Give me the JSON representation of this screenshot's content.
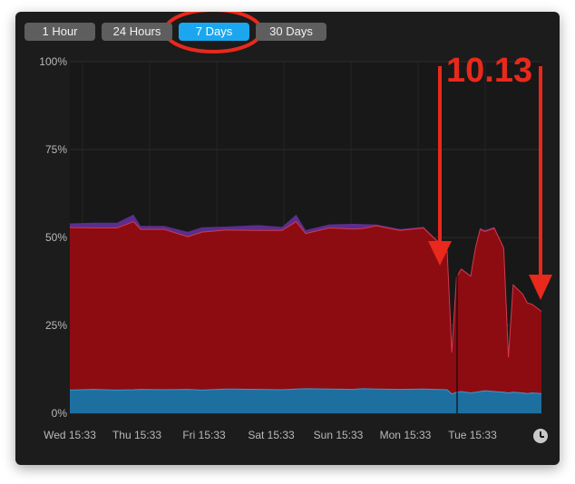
{
  "window": {
    "background": "#1c1c1c"
  },
  "tabs": [
    {
      "label": "1 Hour",
      "active": false
    },
    {
      "label": "24 Hours",
      "active": false
    },
    {
      "label": "7 Days",
      "active": true
    },
    {
      "label": "30 Days",
      "active": false
    }
  ],
  "annotation": {
    "text": "10.13",
    "color": "#e8291c"
  },
  "icons": {
    "clock": "clock-icon"
  },
  "chart_data": {
    "type": "area",
    "title": "",
    "xlabel": "",
    "ylabel": "",
    "ylim": [
      0,
      100
    ],
    "yticks": [
      "100%",
      "75%",
      "50%",
      "25%",
      "0%"
    ],
    "xticks": [
      "Wed 15:33",
      "Thu 15:33",
      "Fri 15:33",
      "Sat 15:33",
      "Sun 15:33",
      "Mon 15:33",
      "Tue 15:33"
    ],
    "grid": true,
    "stacked": true,
    "colors": {
      "blue": "#1d6fa0",
      "red": "#8c0c12",
      "purple": "#5b2e8c",
      "redLine": "#d23a4a",
      "blueLine": "#3f97c9"
    },
    "x": [
      0,
      0.05,
      0.1,
      0.135,
      0.15,
      0.2,
      0.25,
      0.28,
      0.33,
      0.4,
      0.45,
      0.48,
      0.5,
      0.55,
      0.6,
      0.62,
      0.65,
      0.7,
      0.75,
      0.8,
      0.81,
      0.82,
      0.83,
      0.85,
      0.86,
      0.87,
      0.88,
      0.9,
      0.92,
      0.93,
      0.94,
      0.96,
      0.97,
      0.98,
      1.0
    ],
    "series": [
      {
        "values": [
          6.6,
          6.8,
          6.6,
          6.7,
          6.8,
          6.7,
          6.8,
          6.6,
          6.9,
          6.8,
          6.7,
          6.9,
          7.0,
          6.9,
          6.8,
          7.0,
          6.9,
          6.8,
          6.9,
          6.7,
          5.5,
          6.0,
          6.2,
          5.8,
          6.0,
          6.2,
          6.4,
          6.2,
          6.0,
          5.8,
          6.0,
          5.8,
          5.6,
          5.8,
          5.6
        ]
      },
      {
        "values": [
          46.2,
          45.9,
          46.1,
          47.8,
          45.5,
          45.6,
          43.4,
          44.9,
          45.2,
          45.2,
          45.3,
          47.6,
          44.1,
          45.8,
          45.6,
          45.5,
          46.4,
          45.2,
          45.8,
          39.5,
          11.8,
          32.8,
          34.8,
          33.2,
          41.0,
          46.1,
          45.3,
          46.4,
          41.0,
          10.1,
          30.5,
          28.1,
          25.8,
          25.2,
          23.4
        ]
      },
      {
        "values": [
          1.2,
          1.5,
          1.5,
          2.0,
          1.0,
          1.0,
          1.4,
          1.4,
          1.0,
          1.5,
          1.0,
          2.0,
          1.0,
          1.0,
          1.5,
          1.3,
          0.4,
          0.4,
          0.3,
          0.3,
          0.1,
          0.2,
          0.2,
          0.2,
          0.4,
          0.4,
          0.4,
          0.4,
          0.3,
          0.1,
          0.1,
          0.1,
          0.1,
          0.1,
          0.1
        ]
      }
    ]
  }
}
